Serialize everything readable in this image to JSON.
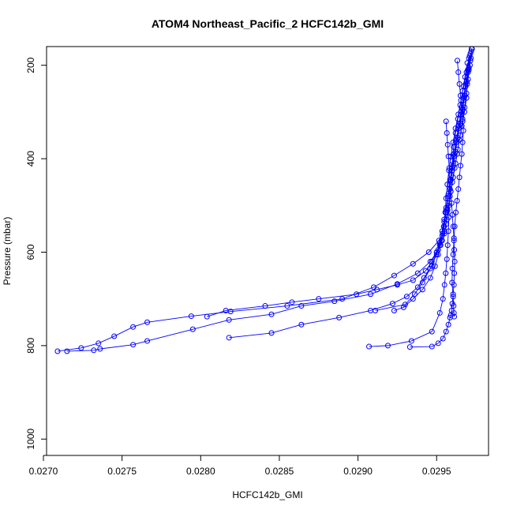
{
  "chart_data": {
    "type": "line",
    "title": "ATOM4 Northeast_Pacific_2 HCFC142b_GMI",
    "xlabel": "HCFC142b_GMI",
    "ylabel": "Pressure (mbar)",
    "xlim": [
      0.02702,
      0.02983
    ],
    "ylim": [
      1035,
      160
    ],
    "y_axis_inverted": true,
    "x_ticks": [
      "0.0270",
      "0.0275",
      "0.0280",
      "0.0285",
      "0.0290",
      "0.0295"
    ],
    "x_tick_values": [
      0.027,
      0.0275,
      0.028,
      0.0285,
      0.029,
      0.0295
    ],
    "y_ticks": [
      "200",
      "400",
      "600",
      "800",
      "1000"
    ],
    "y_tick_values": [
      200,
      400,
      600,
      800,
      1000
    ],
    "grid": false,
    "legend": "none",
    "series_color": "#0000ff",
    "marker": "open-circle",
    "series": [
      {
        "x": [
          0.029722,
          0.029718,
          0.029705,
          0.029695,
          0.02969,
          0.029677,
          0.02966,
          0.029645,
          0.02963,
          0.029615,
          0.0296,
          0.029585,
          0.02957,
          0.02956,
          0.02955,
          0.029515,
          0.02945,
          0.02935,
          0.02923,
          0.0291,
          0.0289,
          0.02855,
          0.02819,
          0.02794,
          0.02766,
          0.02757,
          0.02745,
          0.02735,
          0.02724,
          0.02709
        ],
        "y": [
          165,
          185,
          210,
          240,
          270,
          300,
          330,
          360,
          390,
          420,
          450,
          480,
          510,
          540,
          560,
          575,
          600,
          625,
          650,
          675,
          700,
          715,
          727,
          737,
          750,
          760,
          780,
          795,
          805,
          812
        ]
      },
      {
        "x": [
          0.029725,
          0.029715,
          0.0297,
          0.029685,
          0.02967,
          0.029655,
          0.02964,
          0.029625,
          0.02961,
          0.029598,
          0.029585,
          0.029572,
          0.02956,
          0.029548,
          0.029535,
          0.02952,
          0.0295,
          0.02947,
          0.02943,
          0.02935,
          0.02925,
          0.02912,
          0.02899,
          0.02875,
          0.02858,
          0.02841,
          0.02816,
          0.02804
        ],
        "y": [
          165,
          190,
          215,
          245,
          275,
          305,
          335,
          365,
          395,
          425,
          455,
          485,
          515,
          545,
          565,
          585,
          600,
          620,
          640,
          660,
          670,
          680,
          690,
          700,
          707,
          715,
          725,
          738
        ]
      },
      {
        "x": [
          0.02972,
          0.029712,
          0.0297,
          0.02969,
          0.029678,
          0.029665,
          0.02965,
          0.029635,
          0.02962,
          0.029605,
          0.02959,
          0.029578,
          0.029565,
          0.02955,
          0.029535,
          0.02951,
          0.02946,
          0.02938,
          0.02925,
          0.02908,
          0.02885,
          0.02864,
          0.02845,
          0.02818,
          0.02795,
          0.02766,
          0.02757,
          0.02736,
          0.02732,
          0.02715
        ],
        "y": [
          170,
          200,
          230,
          260,
          290,
          320,
          350,
          380,
          410,
          440,
          470,
          500,
          530,
          555,
          575,
          595,
          620,
          645,
          668,
          690,
          705,
          715,
          733,
          745,
          765,
          790,
          798,
          807,
          810,
          812
        ]
      },
      {
        "x": [
          0.029715,
          0.029705,
          0.029692,
          0.02968,
          0.029665,
          0.02965,
          0.029635,
          0.02962,
          0.029605,
          0.02959,
          0.029575,
          0.02956,
          0.029548,
          0.029535,
          0.02952,
          0.0295,
          0.02947,
          0.02942,
          0.02938,
          0.02931,
          0.02922,
          0.02908,
          0.02888,
          0.02864,
          0.02845,
          0.02818
        ],
        "y": [
          175,
          205,
          235,
          265,
          295,
          325,
          355,
          385,
          415,
          445,
          475,
          505,
          530,
          555,
          580,
          600,
          630,
          655,
          675,
          695,
          710,
          725,
          740,
          755,
          773,
          783
        ]
      },
      {
        "x": [
          0.02971,
          0.029698,
          0.029685,
          0.02967,
          0.029655,
          0.02964,
          0.029625,
          0.02961,
          0.029598,
          0.029585,
          0.029572,
          0.02956,
          0.029548,
          0.029538,
          0.029525,
          0.02951,
          0.02949,
          0.02946,
          0.02941,
          0.02935,
          0.02929,
          0.02923
        ],
        "y": [
          180,
          210,
          240,
          270,
          300,
          330,
          360,
          390,
          420,
          450,
          480,
          510,
          535,
          560,
          585,
          605,
          630,
          655,
          680,
          700,
          718,
          725
        ]
      },
      {
        "x": [
          0.029705,
          0.02969,
          0.029672,
          0.029655,
          0.029638,
          0.02962,
          0.029605,
          0.02959,
          0.029578,
          0.029568,
          0.02956,
          0.029555,
          0.029545,
          0.02953,
          0.0295,
          0.02946,
          0.02941,
          0.02936,
          0.0293,
          0.02911
        ],
        "y": [
          185,
          215,
          245,
          275,
          305,
          335,
          365,
          395,
          425,
          455,
          485,
          515,
          545,
          575,
          605,
          635,
          665,
          690,
          712,
          725
        ]
      },
      {
        "x": [
          0.029632,
          0.029638,
          0.029645,
          0.029652,
          0.029658,
          0.029665,
          0.02967,
          0.029665,
          0.02966,
          0.029652,
          0.029645,
          0.029638,
          0.02963,
          0.029622,
          0.029615,
          0.02961,
          0.029605,
          0.0296,
          0.029598,
          0.029605,
          0.029608,
          0.02961,
          0.029612
        ],
        "y": [
          190,
          215,
          240,
          265,
          290,
          315,
          340,
          365,
          390,
          415,
          440,
          465,
          490,
          515,
          545,
          575,
          605,
          635,
          665,
          695,
          715,
          730,
          738
        ]
      },
      {
        "x": [
          0.029695,
          0.02968,
          0.029665,
          0.02965,
          0.029635,
          0.02962,
          0.029608,
          0.0296,
          0.029592,
          0.029585,
          0.02958,
          0.029578,
          0.029575,
          0.02957,
          0.029565,
          0.029558,
          0.02955,
          0.02954,
          0.02952,
          0.02947,
          0.02934,
          0.02919,
          0.02907
        ],
        "y": [
          195,
          225,
          255,
          285,
          315,
          345,
          375,
          405,
          435,
          465,
          495,
          525,
          555,
          585,
          615,
          645,
          670,
          700,
          730,
          770,
          790,
          800,
          802
        ]
      },
      {
        "x": [
          0.02956,
          0.029565,
          0.02957,
          0.029575,
          0.02958,
          0.029585,
          0.02959,
          0.029595,
          0.0296,
          0.029605,
          0.02961,
          0.029612,
          0.029615,
          0.029612,
          0.02961,
          0.029605,
          0.0296,
          0.029595,
          0.02959,
          0.029585,
          0.029575,
          0.02956,
          0.02954,
          0.02951,
          0.02947,
          0.02933
        ],
        "y": [
          320,
          345,
          370,
          395,
          420,
          445,
          470,
          495,
          520,
          545,
          570,
          595,
          620,
          645,
          670,
          690,
          710,
          725,
          735,
          740,
          755,
          770,
          785,
          795,
          802,
          803
        ]
      }
    ]
  }
}
